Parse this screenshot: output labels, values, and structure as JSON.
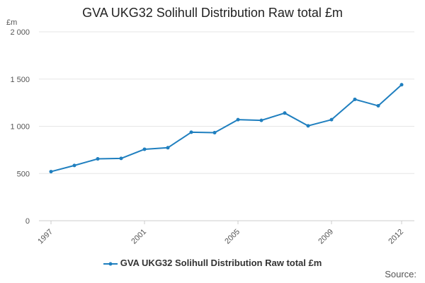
{
  "chart_data": {
    "type": "line",
    "title": "GVA UKG32 Solihull Distribution Raw total £m",
    "ylabel": "£m",
    "xlabel": "",
    "x": [
      1997,
      1998,
      1999,
      2000,
      2001,
      2002,
      2003,
      2004,
      2005,
      2006,
      2007,
      2008,
      2009,
      2010,
      2011,
      2012
    ],
    "series": [
      {
        "name": "GVA UKG32 Solihull Distribution Raw total £m",
        "values": [
          520,
          585,
          655,
          660,
          757,
          773,
          937,
          933,
          1070,
          1063,
          1140,
          1005,
          1070,
          1285,
          1217,
          1440
        ]
      }
    ],
    "ylim": [
      0,
      2000
    ],
    "yticks": [
      0,
      500,
      1000,
      1500,
      2000
    ],
    "ytick_labels": [
      "0",
      "500",
      "1 000",
      "1 500",
      "2 000"
    ],
    "xticks": [
      1997,
      2001,
      2005,
      2009,
      2012
    ],
    "xtick_labels": [
      "1997",
      "2001",
      "2005",
      "2009",
      "2012"
    ],
    "grid": true,
    "legend": "bottom-center",
    "color": "#1f7fbf"
  },
  "source_label": "Source:"
}
